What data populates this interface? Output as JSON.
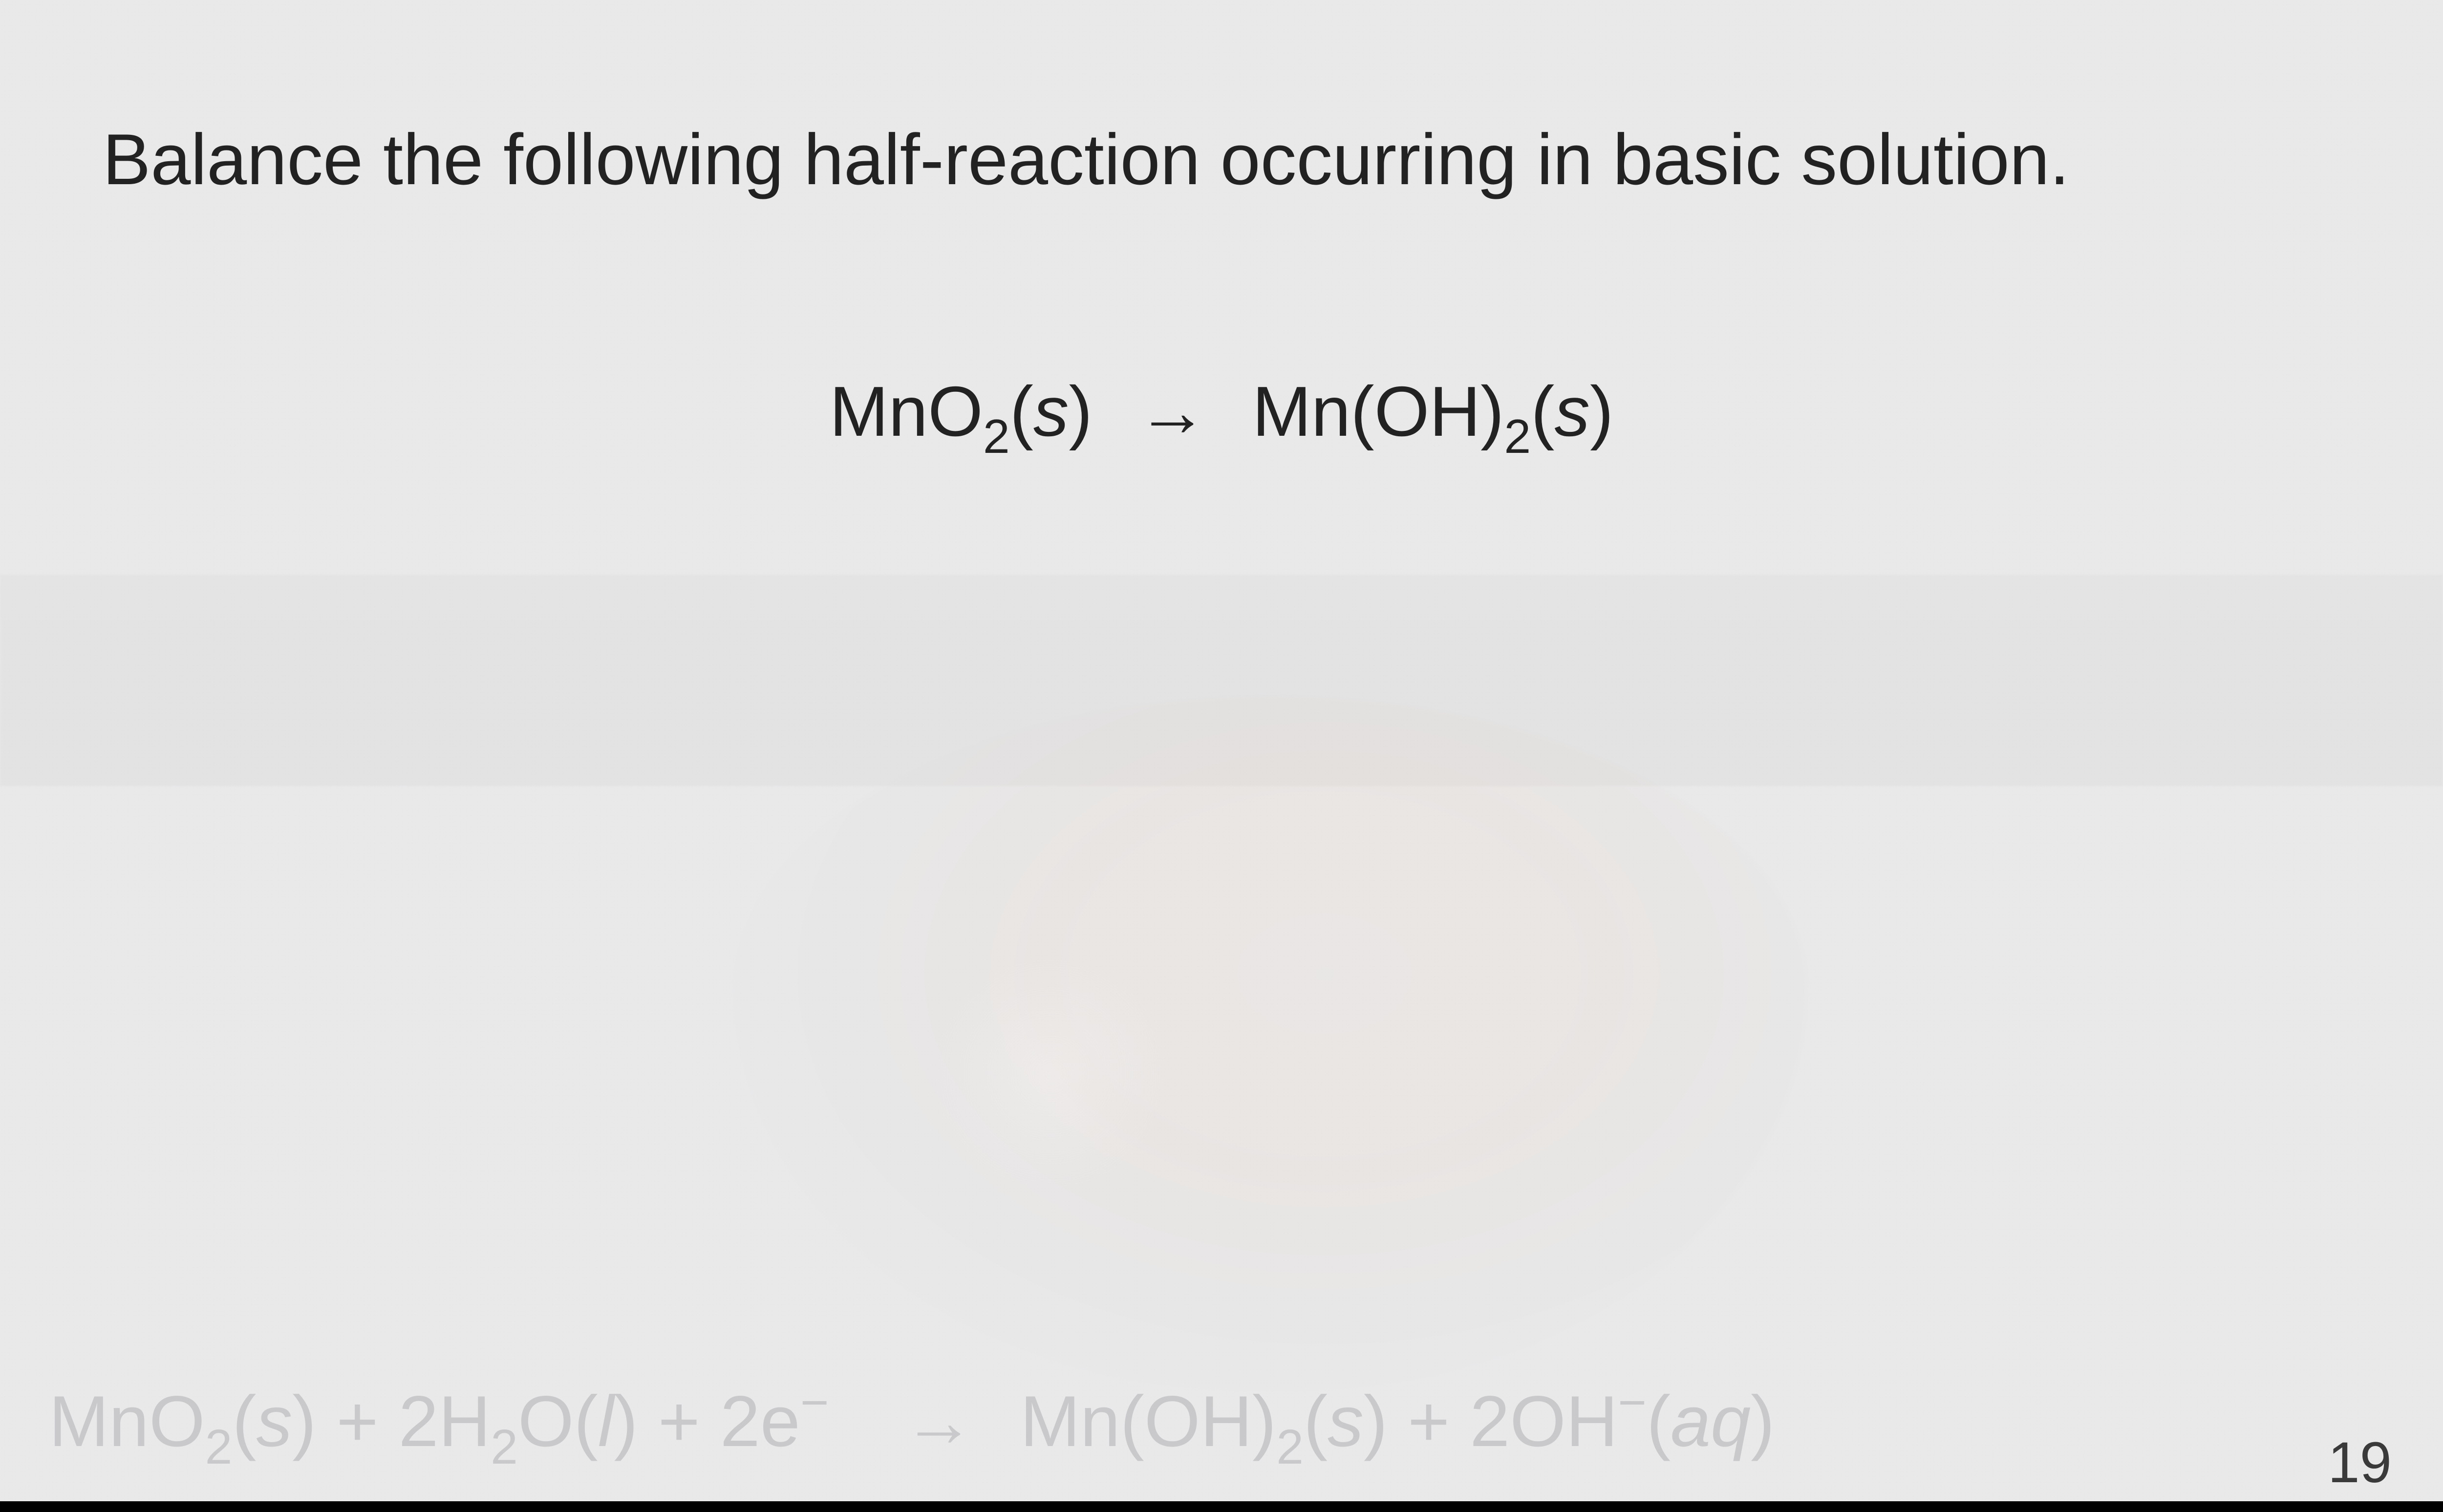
{
  "slide": {
    "prompt": "Balance the following half-reaction occurring in basic solution.",
    "page_number": "19",
    "colors": {
      "background": "#e9e9ea",
      "text_primary": "#222222",
      "answer_faded": "#c9c9cb",
      "page_number": "#3a3a3a",
      "bottom_bar": "#000000"
    },
    "typography": {
      "font_family": "Arial, Helvetica, sans-serif",
      "prompt_fontsize_vw": 2.95,
      "equation_fontsize_vw": 2.9,
      "answer_fontsize_vw": 2.95,
      "page_number_fontsize_vw": 2.35
    },
    "equation": {
      "arrow_glyph": "→",
      "lhs": [
        {
          "text": "MnO",
          "sub": "2",
          "state": "s"
        }
      ],
      "rhs": [
        {
          "text": "Mn(OH)",
          "sub": "2",
          "state": "s"
        }
      ]
    },
    "answer": {
      "arrow_glyph": "→",
      "lhs": [
        {
          "text": "MnO",
          "sub": "2",
          "state": "s",
          "sep_after": " + "
        },
        {
          "coef": "2",
          "text": "H",
          "sub": "2",
          "tail": "O",
          "state": "l",
          "sep_after": " + "
        },
        {
          "coef": "2",
          "text": "e",
          "sup": "−"
        }
      ],
      "rhs": [
        {
          "text": "Mn(OH)",
          "sub": "2",
          "state": "s",
          "sep_after": "+ "
        },
        {
          "coef": "2",
          "text": "OH",
          "sup": "−",
          "state": "aq"
        }
      ]
    }
  }
}
